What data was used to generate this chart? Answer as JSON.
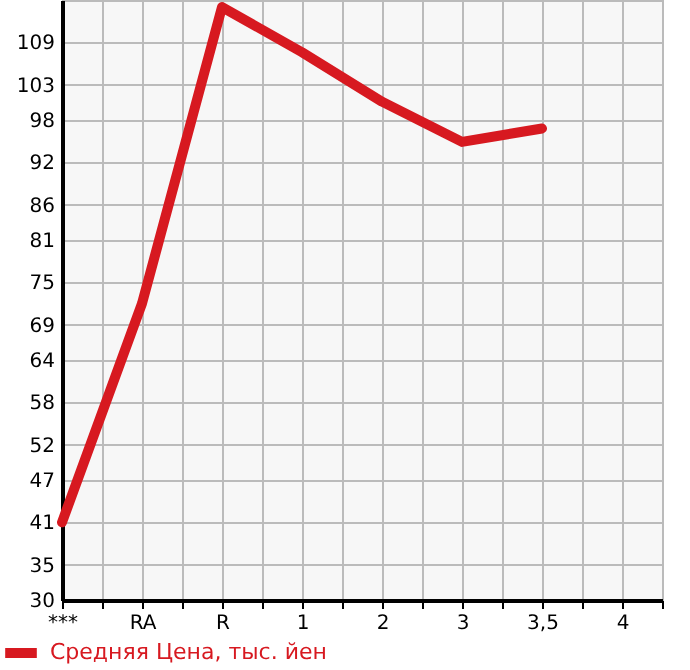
{
  "chart_data": {
    "type": "line",
    "categories": [
      "***",
      "RA",
      "R",
      "1",
      "2",
      "3",
      "3,5",
      "4"
    ],
    "series": [
      {
        "name": "Средняя Цена, тыс. йен",
        "color": "#d71920",
        "values": [
          41,
          72,
          114,
          107.6,
          100.6,
          94.9,
          96.8,
          null
        ]
      }
    ],
    "ylim": [
      30,
      115
    ],
    "yticks": [
      30,
      35,
      41,
      47,
      52,
      58,
      64,
      69,
      75,
      81,
      86,
      92,
      98,
      103,
      109
    ],
    "grid": true,
    "legend": "bottom left",
    "marker": "none",
    "line_style": "solid"
  }
}
